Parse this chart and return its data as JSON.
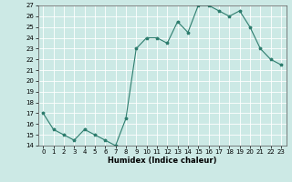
{
  "x": [
    0,
    1,
    2,
    3,
    4,
    5,
    6,
    7,
    8,
    9,
    10,
    11,
    12,
    13,
    14,
    15,
    16,
    17,
    18,
    19,
    20,
    21,
    22,
    23
  ],
  "y": [
    17.0,
    15.5,
    15.0,
    14.5,
    15.5,
    15.0,
    14.5,
    14.0,
    16.5,
    23.0,
    24.0,
    24.0,
    23.5,
    25.5,
    24.5,
    27.0,
    27.0,
    26.5,
    26.0,
    26.5,
    25.0,
    23.0,
    22.0,
    21.5
  ],
  "line_color": "#2e7d6e",
  "marker": "*",
  "marker_size": 2.5,
  "bg_color": "#cce9e5",
  "grid_color": "#ffffff",
  "xlabel": "Humidex (Indice chaleur)",
  "ylim": [
    14,
    27
  ],
  "xlim": [
    -0.5,
    23.5
  ],
  "yticks": [
    14,
    15,
    16,
    17,
    18,
    19,
    20,
    21,
    22,
    23,
    24,
    25,
    26,
    27
  ],
  "xticks": [
    0,
    1,
    2,
    3,
    4,
    5,
    6,
    7,
    8,
    9,
    10,
    11,
    12,
    13,
    14,
    15,
    16,
    17,
    18,
    19,
    20,
    21,
    22,
    23
  ],
  "tick_fontsize": 5,
  "xlabel_fontsize": 6,
  "linewidth": 0.8,
  "spine_color": "#555555"
}
